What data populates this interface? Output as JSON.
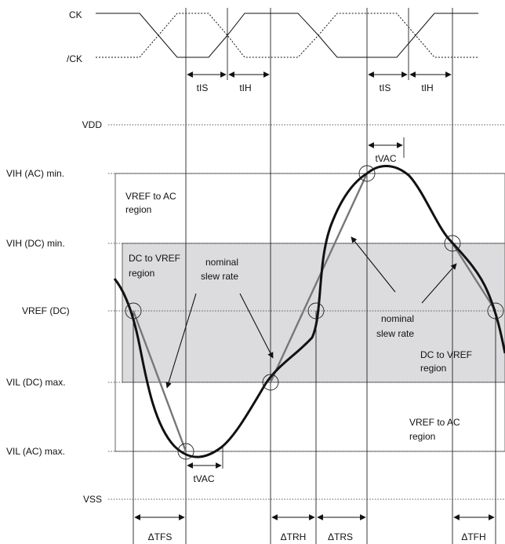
{
  "clock": {
    "ck": "CK",
    "ckb": "/CK"
  },
  "levels": {
    "vdd": "VDD",
    "vih_ac": "VIH  (AC)  min.",
    "vih_dc": "VIH  (DC)  min.",
    "vref_dc": "VREF  (DC)",
    "vil_dc": "VIL  (DC)  max.",
    "vil_ac": "VIL  (AC)  max.",
    "vss": "VSS"
  },
  "timing": {
    "tis": "tIS",
    "tih": "tIH",
    "tvac": "tVAC",
    "dtfs": "ΔTFS",
    "dtrh": "ΔTRH",
    "dtrs": "ΔTRS",
    "dtfh": "ΔTFH"
  },
  "regions": {
    "vref_to_ac_l1": "VREF  to  AC",
    "vref_to_ac_l2": "region",
    "dc_to_vref_l1": "DC  to  VREF",
    "dc_to_vref_l2": "region",
    "dc_to_vref_r1": "DC  to  VREF",
    "dc_to_vref_r2": "region",
    "vref_to_ac_r1": "VREF  to  AC",
    "vref_to_ac_r2": "region"
  },
  "notes": {
    "nominal_l1": "nominal",
    "nominal_l2": "slew rate",
    "nominal_r1": "nominal",
    "nominal_r2": "slew rate"
  }
}
